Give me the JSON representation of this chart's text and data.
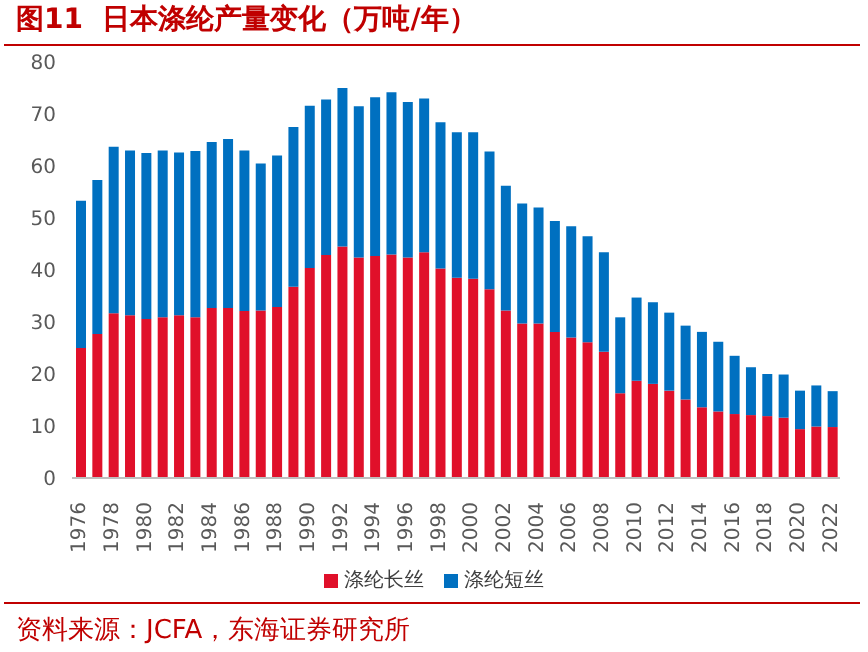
{
  "chart_data": {
    "type": "bar",
    "title": "图11  日本涤纶产量变化（万吨/年）",
    "annotations": [
      "资料来源：JCFA，东海证券研究所"
    ],
    "categories": [
      "1976",
      null,
      "1978",
      null,
      "1980",
      null,
      "1982",
      null,
      "1984",
      null,
      "1986",
      null,
      "1988",
      null,
      "1990",
      null,
      "1992",
      null,
      "1994",
      null,
      "1996",
      null,
      "1998",
      null,
      "2000",
      null,
      "2002",
      null,
      "2004",
      null,
      "2006",
      null,
      "2008",
      null,
      "2010",
      null,
      "2012",
      null,
      "2014",
      null,
      "2016",
      null,
      "2018",
      null,
      "2020",
      null,
      "2022"
    ],
    "stacked": true,
    "ylim": [
      0,
      80
    ],
    "yticks": [
      0,
      10,
      20,
      30,
      40,
      50,
      60,
      70,
      80
    ],
    "grid": false,
    "legend": "bottom",
    "series": [
      {
        "name": "涤纶长丝",
        "color": "#e0102a",
        "values": [
          25.0,
          27.7,
          31.7,
          31.3,
          30.6,
          30.9,
          31.3,
          30.9,
          32.7,
          32.7,
          32.1,
          32.2,
          32.9,
          36.8,
          40.4,
          42.9,
          44.5,
          42.4,
          42.7,
          43.0,
          42.4,
          43.4,
          40.3,
          38.5,
          38.3,
          36.3,
          32.2,
          29.7,
          29.7,
          28.1,
          27.0,
          26.1,
          24.3,
          16.3,
          18.7,
          18.1,
          16.8,
          15.1,
          13.6,
          12.8,
          12.3,
          12.1,
          11.9,
          11.6,
          9.4,
          9.9,
          9.8
        ]
      },
      {
        "name": "涤纶短丝",
        "color": "#0070c0",
        "values": [
          28.3,
          29.6,
          32.0,
          31.7,
          31.9,
          32.1,
          31.3,
          32.0,
          31.9,
          32.5,
          30.9,
          28.3,
          29.1,
          30.7,
          31.2,
          29.9,
          30.5,
          29.1,
          30.5,
          31.2,
          29.9,
          29.6,
          28.1,
          28.0,
          28.2,
          26.5,
          24.0,
          23.1,
          22.3,
          21.3,
          21.4,
          20.4,
          19.1,
          14.6,
          16.0,
          15.7,
          15.0,
          14.2,
          14.5,
          13.4,
          11.2,
          9.2,
          8.1,
          8.3,
          7.4,
          7.9,
          6.9
        ]
      }
    ]
  }
}
